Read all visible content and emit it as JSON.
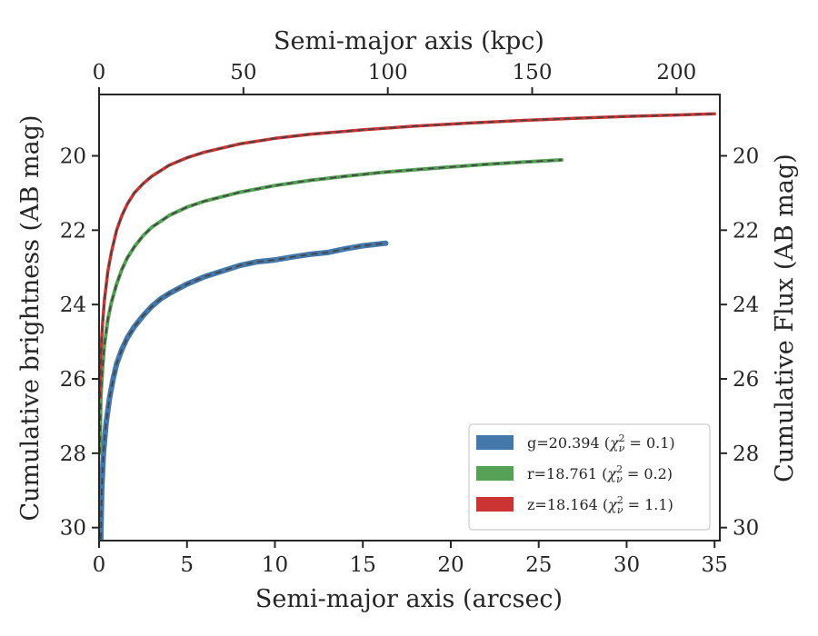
{
  "chart_data": {
    "type": "line",
    "xlabel": "Semi-major axis (arcsec)",
    "ylabel": "Cumulative brightness (AB mag)",
    "x2label": "Semi-major axis (kpc)",
    "y2label": "Cumulative Flux (AB mag)",
    "xlim": [
      0,
      35.3
    ],
    "ylim": [
      30.35,
      18.35
    ],
    "x2lim": [
      0,
      215
    ],
    "x_ticks": [
      0,
      5,
      10,
      15,
      20,
      25,
      30,
      35
    ],
    "x2_ticks": [
      0,
      50,
      100,
      150,
      200
    ],
    "y_ticks": [
      20,
      22,
      24,
      26,
      28,
      30
    ],
    "grid": false,
    "legend_position": "lower-right",
    "series": [
      {
        "name": "g=20.394 (χ²ᵥ = 0.1)",
        "legend_main": "g=20.394 (",
        "legend_var": "χ",
        "legend_sup": "2",
        "legend_sub": "ν",
        "legend_tail": " = 0.1)",
        "color": "#4477aa",
        "x": [
          0.1,
          0.15,
          0.25,
          0.4,
          0.6,
          0.8,
          1.0,
          1.3,
          1.6,
          2.0,
          2.5,
          3.0,
          3.5,
          4.0,
          5.0,
          6.0,
          7.0,
          8.0,
          9.0,
          10.0,
          11.0,
          12.0,
          13.0,
          14.0,
          15.0,
          16.3
        ],
        "y": [
          30.3,
          29.0,
          28.0,
          27.2,
          26.5,
          26.0,
          25.6,
          25.2,
          24.9,
          24.6,
          24.3,
          24.05,
          23.85,
          23.7,
          23.45,
          23.25,
          23.1,
          22.95,
          22.85,
          22.8,
          22.72,
          22.65,
          22.6,
          22.5,
          22.42,
          22.35
        ]
      },
      {
        "name": "r=18.761 (χ²ᵥ = 0.2)",
        "legend_main": "r=18.761 (",
        "legend_var": "χ",
        "legend_sup": "2",
        "legend_sub": "ν",
        "legend_tail": " = 0.2)",
        "color": "#55a155",
        "x": [
          0.05,
          0.1,
          0.2,
          0.3,
          0.5,
          0.7,
          1.0,
          1.3,
          1.6,
          2.0,
          2.5,
          3.0,
          4.0,
          5.0,
          6.0,
          8.0,
          10.0,
          12.0,
          14.0,
          16.0,
          18.0,
          20.0,
          22.0,
          24.0,
          26.3
        ],
        "y": [
          28.0,
          26.5,
          25.7,
          25.1,
          24.4,
          23.95,
          23.45,
          23.05,
          22.75,
          22.45,
          22.15,
          21.92,
          21.6,
          21.38,
          21.22,
          20.98,
          20.8,
          20.66,
          20.55,
          20.45,
          20.37,
          20.3,
          20.23,
          20.17,
          20.11
        ]
      },
      {
        "name": "z=18.164 (χ²ᵥ = 1.1)",
        "legend_main": "z=18.164 (",
        "legend_var": "χ",
        "legend_sup": "2",
        "legend_sub": "ν",
        "legend_tail": " = 1.1)",
        "color": "#cc3333",
        "x": [
          0.05,
          0.1,
          0.2,
          0.3,
          0.5,
          0.7,
          1.0,
          1.3,
          1.6,
          2.0,
          2.5,
          3.0,
          4.0,
          5.0,
          6.0,
          8.0,
          10.0,
          12.0,
          15.0,
          18.0,
          21.0,
          24.0,
          27.0,
          30.0,
          33.0,
          35.0
        ],
        "y": [
          26.5,
          25.3,
          24.5,
          23.9,
          23.1,
          22.6,
          22.0,
          21.6,
          21.3,
          21.0,
          20.75,
          20.55,
          20.25,
          20.05,
          19.9,
          19.68,
          19.53,
          19.42,
          19.3,
          19.2,
          19.12,
          19.05,
          18.99,
          18.94,
          18.9,
          18.87
        ]
      }
    ]
  }
}
